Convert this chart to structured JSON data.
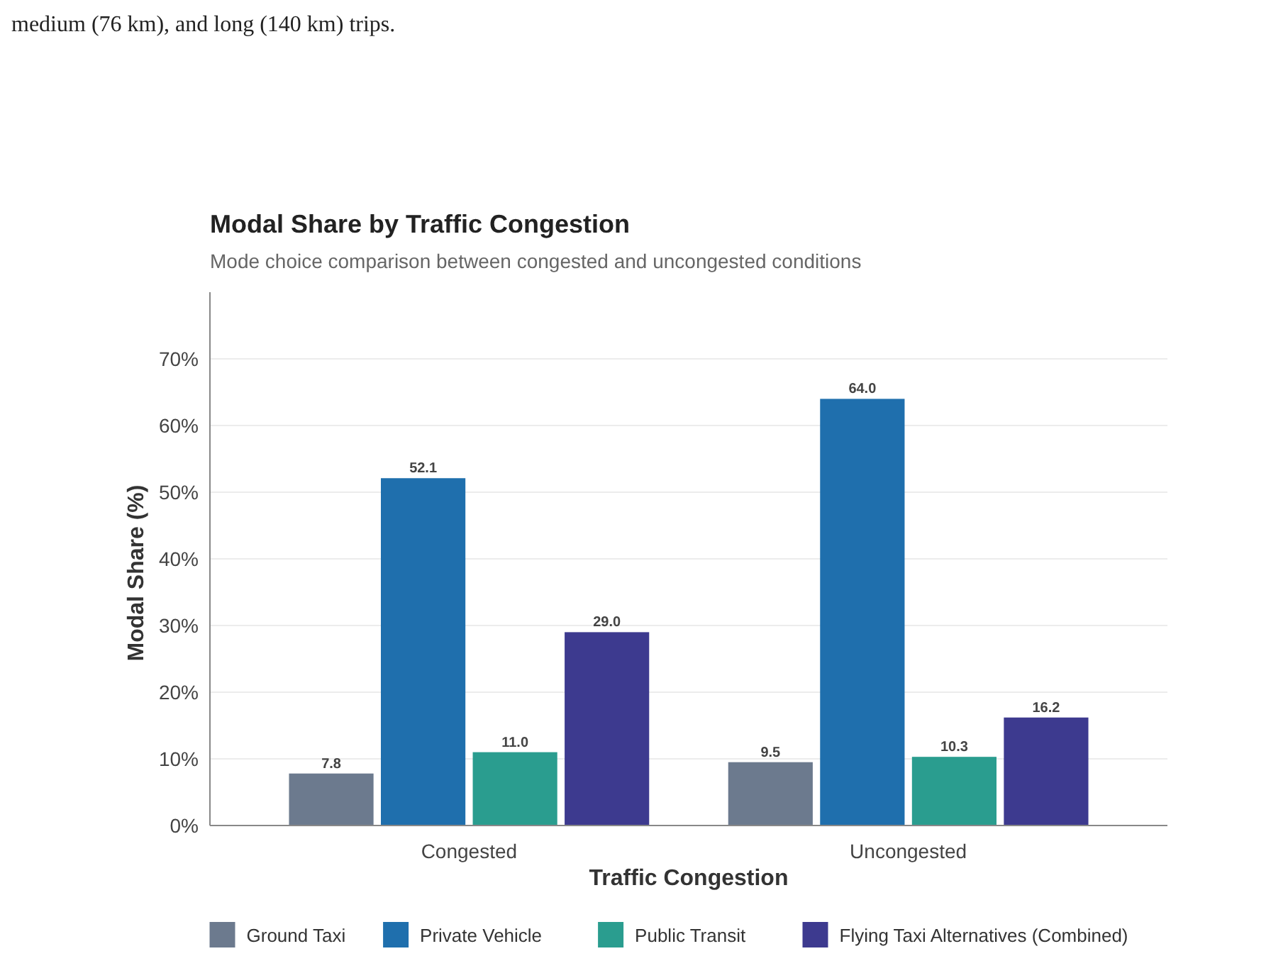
{
  "chart_data": {
    "type": "bar",
    "title": "Modal Share by Traffic Congestion",
    "subtitle": "Mode choice comparison between congested and uncongested conditions",
    "xlabel": "Traffic Congestion",
    "ylabel": "Modal Share (%)",
    "annotations": [
      "medium (76 km), and long (140 km) trips."
    ],
    "categories": [
      "Congested",
      "Uncongested"
    ],
    "series": [
      {
        "name": "Ground Taxi",
        "color": "#6c7a8e",
        "values": [
          7.8,
          9.5
        ],
        "value_labels": [
          "7.8",
          "9.5"
        ]
      },
      {
        "name": "Private Vehicle",
        "color": "#1f6fad",
        "values": [
          52.1,
          64.0
        ],
        "value_labels": [
          "52.1",
          "64.0"
        ]
      },
      {
        "name": "Public Transit",
        "color": "#2a9d8f",
        "values": [
          11.0,
          10.3
        ],
        "value_labels": [
          "11.0",
          "10.3"
        ]
      },
      {
        "name": "Flying Taxi Alternatives (Combined)",
        "color": "#3d3a8f",
        "values": [
          29.0,
          16.2
        ],
        "value_labels": [
          "29.0",
          "16.2"
        ]
      }
    ],
    "ylim": [
      0,
      80
    ],
    "yticks": [
      {
        "value": 0,
        "label": "0%"
      },
      {
        "value": 10,
        "label": "10%"
      },
      {
        "value": 20,
        "label": "20%"
      },
      {
        "value": 30,
        "label": "30%"
      },
      {
        "value": 40,
        "label": "40%"
      },
      {
        "value": 50,
        "label": "50%"
      },
      {
        "value": 60,
        "label": "60%"
      },
      {
        "value": 70,
        "label": "70%"
      }
    ],
    "grid": "y",
    "legend": "bottom"
  }
}
